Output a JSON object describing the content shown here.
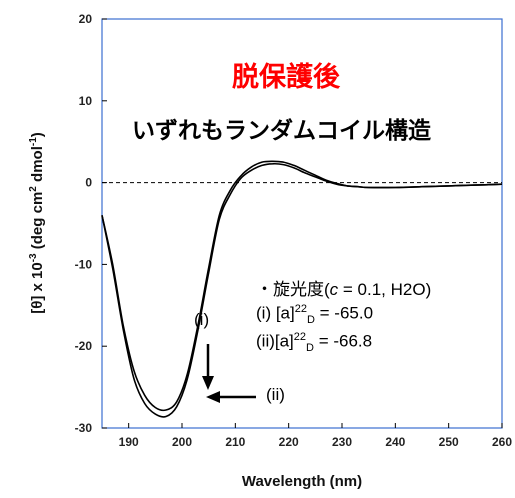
{
  "chart_data": {
    "type": "line",
    "title": "",
    "xlabel": "Wavelength (nm)",
    "ylabel_parts": {
      "prefix": "[θ] x 10",
      "exp1": "-3",
      "middle": " (deg cm",
      "exp2": "2",
      "middle2": " dmol",
      "exp3": "-1",
      "suffix": ")"
    },
    "xlim": [
      185,
      260
    ],
    "ylim": [
      -30,
      20
    ],
    "xticks": [
      "190",
      "200",
      "210",
      "220",
      "230",
      "240",
      "250",
      "260"
    ],
    "yticks": [
      "20",
      "10",
      "0",
      "-10",
      "-20",
      "-30"
    ],
    "zero_line": "dashed",
    "series": [
      {
        "name": "(i)",
        "color": "#000000",
        "x": [
          185,
          187,
          189,
          191,
          193,
          195,
          197,
          199,
          201,
          203,
          205,
          207,
          209,
          211,
          213,
          215,
          217,
          219,
          221,
          223,
          225,
          227,
          229,
          231,
          233,
          235,
          240,
          245,
          250,
          255,
          260
        ],
        "y": [
          -4.0,
          -10.5,
          -18.0,
          -24.0,
          -27.0,
          -28.3,
          -28.6,
          -27.4,
          -24.0,
          -18.0,
          -11.0,
          -4.5,
          -1.5,
          0.5,
          1.5,
          2.1,
          2.3,
          2.2,
          1.8,
          1.2,
          0.7,
          0.2,
          -0.2,
          -0.4,
          -0.5,
          -0.6,
          -0.6,
          -0.5,
          -0.4,
          -0.3,
          -0.2
        ]
      },
      {
        "name": "(ii)",
        "color": "#000000",
        "x": [
          185,
          187,
          189,
          191,
          193,
          195,
          197,
          199,
          201,
          203,
          205,
          207,
          209,
          211,
          213,
          215,
          217,
          219,
          221,
          223,
          225,
          227,
          229,
          231,
          233,
          235,
          240,
          245,
          250,
          255,
          260
        ],
        "y": [
          -4.0,
          -10.0,
          -17.5,
          -23.0,
          -26.0,
          -27.5,
          -27.8,
          -26.8,
          -23.4,
          -17.4,
          -10.4,
          -4.0,
          -1.0,
          0.8,
          1.9,
          2.5,
          2.6,
          2.5,
          2.1,
          1.5,
          0.9,
          0.3,
          -0.1,
          -0.4,
          -0.5,
          -0.6,
          -0.6,
          -0.5,
          -0.4,
          -0.3,
          -0.2
        ]
      }
    ],
    "annotations": {
      "heading_red": "脱保護後",
      "heading_black": "いずれもランダムコイル構造",
      "rotation_title": "・旋光度(",
      "rotation_c": "c",
      "rotation_rest": " = 0.1, H2O)",
      "line_i_prefix": "(i) [a]",
      "line_i_sup": "22",
      "line_i_sub": "D",
      "line_i_value": " = -65.0",
      "line_ii_prefix": "(ii)[a]",
      "line_ii_sup": "22",
      "line_ii_sub": "D",
      "line_ii_value": " = -66.8",
      "label_i": "(i)",
      "label_ii": "(ii)"
    }
  }
}
